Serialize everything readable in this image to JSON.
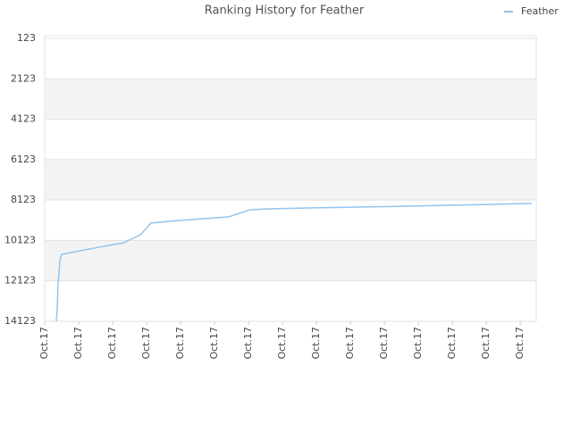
{
  "chart_data": {
    "type": "line",
    "title": "Ranking History for Feather",
    "x": [
      0.34,
      0.37,
      0.39,
      0.45,
      0.5,
      1.05,
      1.58,
      2.32,
      2.82,
      3.13,
      3.95,
      4.74,
      5.42,
      6.05,
      6.58,
      7.89,
      9.21,
      10.53,
      11.84,
      13.16,
      14.34
    ],
    "series": [
      {
        "name": "Feather",
        "color": "#92c5ee",
        "values": [
          14123,
          13500,
          12355,
          11100,
          10810,
          10630,
          10460,
          10240,
          9840,
          9260,
          9130,
          9040,
          8950,
          8600,
          8560,
          8510,
          8470,
          8430,
          8380,
          8340,
          8290
        ]
      }
    ],
    "xlim": [
      0,
      14.47
    ],
    "xticks": [
      {
        "value": 0,
        "label": "Oct.17"
      },
      {
        "value": 1,
        "label": "Oct.17"
      },
      {
        "value": 2,
        "label": "Oct.17"
      },
      {
        "value": 3,
        "label": "Oct.17"
      },
      {
        "value": 4,
        "label": "Oct.17"
      },
      {
        "value": 5,
        "label": "Oct.17"
      },
      {
        "value": 6,
        "label": "Oct.17"
      },
      {
        "value": 7,
        "label": "Oct.17"
      },
      {
        "value": 8,
        "label": "Oct.17"
      },
      {
        "value": 9,
        "label": "Oct.17"
      },
      {
        "value": 10,
        "label": "Oct.17"
      },
      {
        "value": 11,
        "label": "Oct.17"
      },
      {
        "value": 12,
        "label": "Oct.17"
      },
      {
        "value": 13,
        "label": "Oct.17"
      },
      {
        "value": 14,
        "label": "Oct.17"
      }
    ],
    "ylim": [
      123,
      14123
    ],
    "yticks": [
      123,
      2123,
      4123,
      6123,
      8123,
      10123,
      12123,
      14123
    ],
    "y_inverted": true,
    "grid": true,
    "alternate_bands": true,
    "legend": "top-right"
  }
}
